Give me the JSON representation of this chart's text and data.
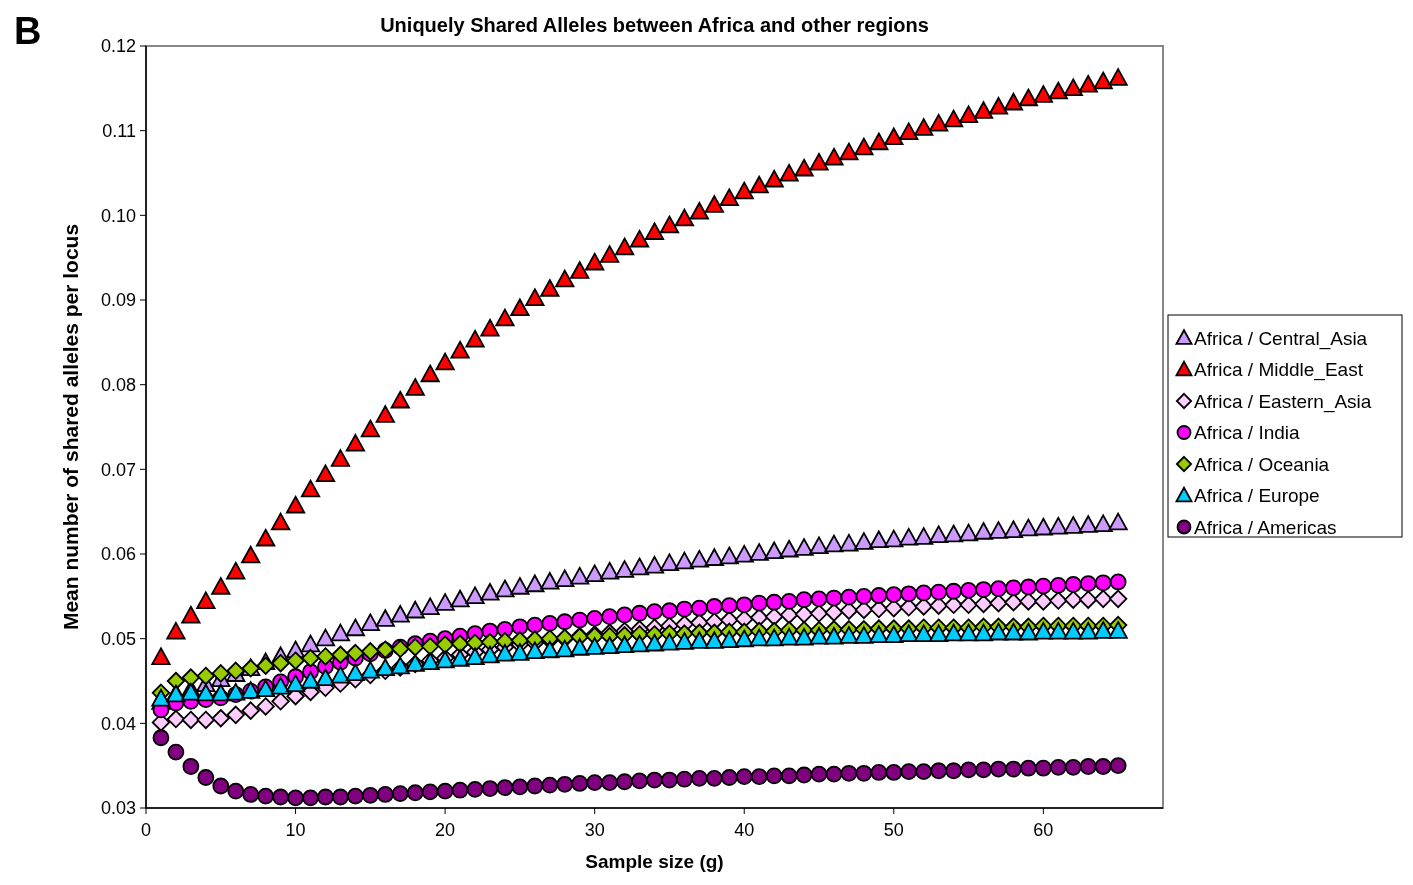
{
  "chart_data": {
    "type": "scatter",
    "title": "Uniquely Shared Alleles between Africa and other regions",
    "xlabel": "Sample size (g)",
    "ylabel": "Mean number of shared alleles per locus",
    "annotations": [
      "B"
    ],
    "x": [
      1,
      2,
      3,
      4,
      5,
      6,
      7,
      8,
      9,
      10,
      11,
      12,
      13,
      14,
      15,
      16,
      17,
      18,
      19,
      20,
      21,
      22,
      23,
      24,
      25,
      26,
      27,
      28,
      29,
      30,
      31,
      32,
      33,
      34,
      35,
      36,
      37,
      38,
      39,
      40,
      41,
      42,
      43,
      44,
      45,
      46,
      47,
      48,
      49,
      50,
      51,
      52,
      53,
      54,
      55,
      56,
      57,
      58,
      59,
      60,
      61,
      62,
      63,
      64,
      65
    ],
    "xlim": [
      0,
      68
    ],
    "xticks": [
      0,
      10,
      20,
      30,
      40,
      50,
      60
    ],
    "ylim": [
      0.03,
      0.12
    ],
    "yticks": [
      0.03,
      0.04,
      0.05,
      0.06,
      0.07,
      0.08,
      0.09,
      {
        "value": 0.1,
        "label": "0.10"
      },
      0.11,
      0.12
    ],
    "grid": false,
    "legend": "right",
    "series": [
      {
        "name": "Africa / Central_Asia",
        "color": "#cc99ff",
        "marker": "triangle",
        "values": [
          0.0425,
          0.0435,
          0.044,
          0.0446,
          0.0452,
          0.0458,
          0.0465,
          0.0472,
          0.0479,
          0.0486,
          0.0493,
          0.05,
          0.0506,
          0.0512,
          0.0518,
          0.0523,
          0.0528,
          0.0533,
          0.0537,
          0.0542,
          0.0546,
          0.055,
          0.0554,
          0.0558,
          0.0561,
          0.0564,
          0.0567,
          0.057,
          0.0573,
          0.0576,
          0.0579,
          0.0581,
          0.0584,
          0.0586,
          0.0589,
          0.0591,
          0.0593,
          0.0595,
          0.0597,
          0.0599,
          0.0601,
          0.0603,
          0.0605,
          0.0607,
          0.0609,
          0.0611,
          0.0612,
          0.0614,
          0.0616,
          0.0617,
          0.0619,
          0.062,
          0.0622,
          0.0623,
          0.0624,
          0.0626,
          0.0627,
          0.0628,
          0.063,
          0.0631,
          0.0632,
          0.0633,
          0.0634,
          0.0635,
          0.0637
        ]
      },
      {
        "name": "Africa / Middle_East",
        "color": "#ff0000",
        "marker": "triangle",
        "values": [
          0.0478,
          0.0508,
          0.0527,
          0.0544,
          0.0561,
          0.0579,
          0.0598,
          0.0618,
          0.0637,
          0.0657,
          0.0676,
          0.0694,
          0.0712,
          0.073,
          0.0747,
          0.0764,
          0.0781,
          0.0796,
          0.0812,
          0.0826,
          0.084,
          0.0853,
          0.0866,
          0.0878,
          0.089,
          0.0902,
          0.0913,
          0.0924,
          0.0934,
          0.0944,
          0.0953,
          0.0962,
          0.0971,
          0.098,
          0.0988,
          0.0996,
          0.1004,
          0.1012,
          0.102,
          0.1028,
          0.1035,
          0.1042,
          0.1049,
          0.1055,
          0.1062,
          0.1068,
          0.1074,
          0.108,
          0.1086,
          0.1092,
          0.1098,
          0.1103,
          0.1108,
          0.1113,
          0.1118,
          0.1123,
          0.1128,
          0.1133,
          0.1138,
          0.1142,
          0.1146,
          0.115,
          0.1154,
          0.1158,
          0.1162
        ]
      },
      {
        "name": "Africa / Eastern_Asia",
        "color": "#ffccff",
        "marker": "diamond",
        "values": [
          0.0401,
          0.0405,
          0.0404,
          0.0404,
          0.0406,
          0.041,
          0.0415,
          0.042,
          0.0426,
          0.0432,
          0.0437,
          0.0442,
          0.0447,
          0.0452,
          0.0457,
          0.0462,
          0.0466,
          0.047,
          0.0474,
          0.0477,
          0.0481,
          0.0484,
          0.0487,
          0.049,
          0.0493,
          0.0495,
          0.0498,
          0.05,
          0.0503,
          0.0505,
          0.0507,
          0.0509,
          0.0511,
          0.0513,
          0.0515,
          0.0517,
          0.0519,
          0.052,
          0.0522,
          0.0523,
          0.0525,
          0.0526,
          0.0528,
          0.0529,
          0.053,
          0.0531,
          0.0533,
          0.0534,
          0.0535,
          0.0536,
          0.0537,
          0.0538,
          0.0539,
          0.054,
          0.054,
          0.0541,
          0.0542,
          0.0543,
          0.0544,
          0.0544,
          0.0545,
          0.0546,
          0.0546,
          0.0547,
          0.0547
        ]
      },
      {
        "name": "Africa / India",
        "color": "#ff00ff",
        "marker": "circle",
        "values": [
          0.0416,
          0.0424,
          0.0426,
          0.0428,
          0.043,
          0.0434,
          0.0438,
          0.0443,
          0.0449,
          0.0455,
          0.0461,
          0.0467,
          0.0472,
          0.0477,
          0.0482,
          0.0486,
          0.049,
          0.0494,
          0.0497,
          0.05,
          0.0503,
          0.0506,
          0.0509,
          0.0511,
          0.0514,
          0.0516,
          0.0518,
          0.052,
          0.0522,
          0.0524,
          0.0526,
          0.0528,
          0.053,
          0.0532,
          0.0533,
          0.0535,
          0.0536,
          0.0538,
          0.0539,
          0.054,
          0.0542,
          0.0543,
          0.0544,
          0.0546,
          0.0547,
          0.0548,
          0.0549,
          0.055,
          0.0551,
          0.0552,
          0.0553,
          0.0554,
          0.0555,
          0.0556,
          0.0557,
          0.0558,
          0.0559,
          0.056,
          0.0561,
          0.0562,
          0.0563,
          0.0564,
          0.0565,
          0.0566,
          0.0567
        ]
      },
      {
        "name": "Africa / Oceania",
        "color": "#99cc00",
        "marker": "diamond",
        "values": [
          0.0436,
          0.045,
          0.0454,
          0.0456,
          0.0459,
          0.0462,
          0.0465,
          0.0468,
          0.0471,
          0.0474,
          0.0477,
          0.0479,
          0.0481,
          0.0483,
          0.0485,
          0.0487,
          0.0488,
          0.049,
          0.0491,
          0.0493,
          0.0494,
          0.0495,
          0.0496,
          0.0497,
          0.0498,
          0.0499,
          0.05,
          0.0501,
          0.0502,
          0.0503,
          0.0503,
          0.0504,
          0.0505,
          0.0505,
          0.0506,
          0.0506,
          0.0507,
          0.0507,
          0.0508,
          0.0508,
          0.0509,
          0.0509,
          0.051,
          0.051,
          0.051,
          0.0511,
          0.0511,
          0.0511,
          0.0512,
          0.0512,
          0.0512,
          0.0513,
          0.0513,
          0.0513,
          0.0513,
          0.0514,
          0.0514,
          0.0514,
          0.0514,
          0.0515,
          0.0515,
          0.0515,
          0.0515,
          0.0515,
          0.0516
        ]
      },
      {
        "name": "Africa / Europe",
        "color": "#00ccff",
        "marker": "triangle",
        "values": [
          0.0429,
          0.0434,
          0.0436,
          0.0435,
          0.0435,
          0.0436,
          0.0438,
          0.044,
          0.0443,
          0.0446,
          0.045,
          0.0453,
          0.0456,
          0.0459,
          0.0462,
          0.0465,
          0.0467,
          0.047,
          0.0472,
          0.0474,
          0.0476,
          0.0478,
          0.048,
          0.0482,
          0.0483,
          0.0485,
          0.0486,
          0.0487,
          0.0489,
          0.049,
          0.0491,
          0.0492,
          0.0493,
          0.0494,
          0.0495,
          0.0496,
          0.0497,
          0.0497,
          0.0498,
          0.0499,
          0.05,
          0.05,
          0.0501,
          0.0501,
          0.0502,
          0.0502,
          0.0503,
          0.0503,
          0.0504,
          0.0504,
          0.0505,
          0.0505,
          0.0505,
          0.0506,
          0.0506,
          0.0506,
          0.0507,
          0.0507,
          0.0507,
          0.0508,
          0.0508,
          0.0508,
          0.0508,
          0.0509,
          0.0509
        ]
      },
      {
        "name": "Africa / Americas",
        "color": "#800080",
        "marker": "circle",
        "values": [
          0.0383,
          0.0366,
          0.0349,
          0.0336,
          0.0326,
          0.032,
          0.0316,
          0.0314,
          0.0313,
          0.0312,
          0.0312,
          0.0313,
          0.0313,
          0.0314,
          0.0315,
          0.0316,
          0.0317,
          0.0318,
          0.0319,
          0.032,
          0.0321,
          0.0322,
          0.0323,
          0.0324,
          0.0325,
          0.0326,
          0.0327,
          0.0328,
          0.0329,
          0.033,
          0.033,
          0.0331,
          0.0332,
          0.0333,
          0.0333,
          0.0334,
          0.0335,
          0.0335,
          0.0336,
          0.0337,
          0.0337,
          0.0338,
          0.0338,
          0.0339,
          0.034,
          0.034,
          0.0341,
          0.0341,
          0.0342,
          0.0342,
          0.0343,
          0.0343,
          0.0344,
          0.0344,
          0.0345,
          0.0345,
          0.0346,
          0.0346,
          0.0347,
          0.0347,
          0.0348,
          0.0348,
          0.0349,
          0.0349,
          0.035
        ]
      }
    ]
  }
}
